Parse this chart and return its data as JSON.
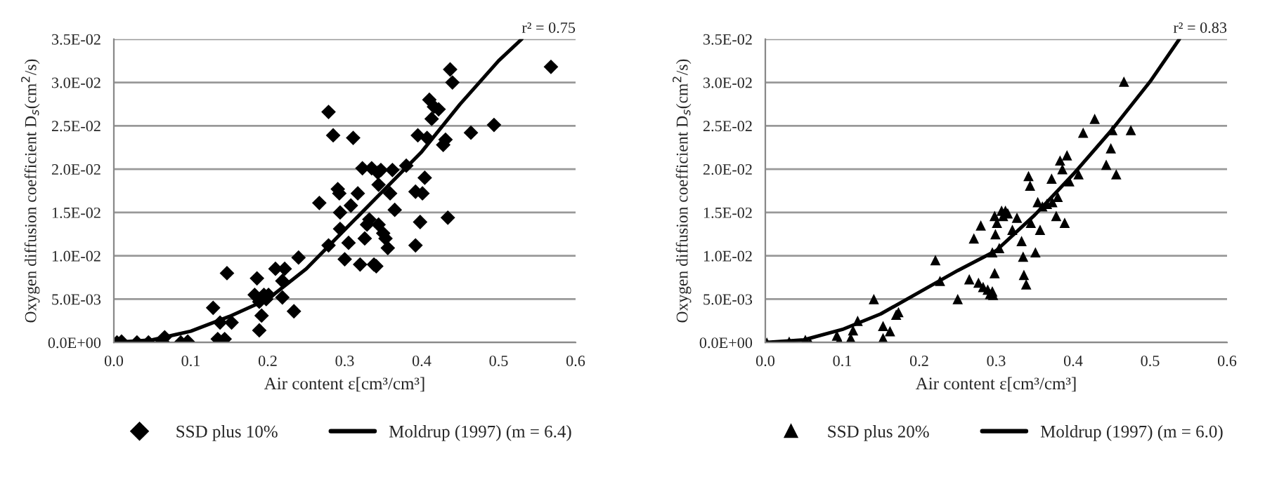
{
  "chart_data": [
    {
      "type": "scatter",
      "xlabel": "Air content ε[cm³/cm³]",
      "ylabel": "Oxygen diffusion coefficient D$_{s}$(cm$^{2}$/s)",
      "annotations": [
        "r² = 0.75"
      ],
      "xlim": [
        0,
        0.6
      ],
      "xticks": [
        {
          "value": 0,
          "label": "0.0"
        },
        {
          "value": 0.1,
          "label": "0.1"
        },
        {
          "value": 0.2,
          "label": "0.2"
        },
        {
          "value": 0.3,
          "label": "0.3"
        },
        {
          "value": 0.4,
          "label": "0.4"
        },
        {
          "value": 0.5,
          "label": "0.5"
        },
        {
          "value": 0.6,
          "label": "0.6"
        }
      ],
      "ylim": [
        0,
        0.035
      ],
      "yticks": [
        {
          "value": 0,
          "label": "0.0E+00"
        },
        {
          "value": 0.005,
          "label": "5.0E-03"
        },
        {
          "value": 0.01,
          "label": "1.0E-02"
        },
        {
          "value": 0.015,
          "label": "1.5E-02"
        },
        {
          "value": 0.02,
          "label": "2.0E-02"
        },
        {
          "value": 0.025,
          "label": "2.5E-02"
        },
        {
          "value": 0.03,
          "label": "3.0E-02"
        },
        {
          "value": 0.035,
          "label": "3.5E-02"
        }
      ],
      "grid": "y",
      "legend": "bottom",
      "series": [
        {
          "name": "SSD plus 10%",
          "marker": "diamond",
          "color": "#000000",
          "x": [
            0.004,
            0.01,
            0.03,
            0.045,
            0.063,
            0.066,
            0.087,
            0.096,
            0.129,
            0.138,
            0.135,
            0.144,
            0.147,
            0.153,
            0.183,
            0.186,
            0.189,
            0.192,
            0.189,
            0.195,
            0.198,
            0.201,
            0.21,
            0.219,
            0.222,
            0.219,
            0.234,
            0.24,
            0.267,
            0.279,
            0.279,
            0.285,
            0.291,
            0.293,
            0.294,
            0.294,
            0.3,
            0.305,
            0.308,
            0.311,
            0.317,
            0.32,
            0.323,
            0.326,
            0.329,
            0.332,
            0.335,
            0.338,
            0.341,
            0.343,
            0.344,
            0.344,
            0.347,
            0.35,
            0.353,
            0.356,
            0.359,
            0.362,
            0.365,
            0.38,
            0.392,
            0.392,
            0.395,
            0.398,
            0.401,
            0.404,
            0.407,
            0.41,
            0.413,
            0.416,
            0.422,
            0.428,
            0.431,
            0.434,
            0.437,
            0.44,
            0.464,
            0.494,
            0.568
          ],
          "values": [
            0,
            0.0001,
            0,
            0,
            0.0001,
            0.0006,
            0,
            0.0001,
            0.004,
            0.0023,
            0.0004,
            0.0004,
            0.008,
            0.0023,
            0.0055,
            0.0074,
            0.0047,
            0.0031,
            0.0014,
            0.0055,
            0.005,
            0.0055,
            0.0085,
            0.0071,
            0.0085,
            0.0052,
            0.0036,
            0.0098,
            0.0161,
            0.0112,
            0.0266,
            0.0239,
            0.0177,
            0.0172,
            0.015,
            0.0131,
            0.0096,
            0.0115,
            0.0158,
            0.0236,
            0.0172,
            0.009,
            0.0201,
            0.012,
            0.0136,
            0.0142,
            0.0201,
            0.009,
            0.0088,
            0.0196,
            0.0182,
            0.0136,
            0.0199,
            0.0126,
            0.012,
            0.0109,
            0.0172,
            0.0199,
            0.0153,
            0.0204,
            0.0112,
            0.0174,
            0.0239,
            0.0139,
            0.0172,
            0.019,
            0.0236,
            0.028,
            0.0258,
            0.0272,
            0.0269,
            0.0228,
            0.0234,
            0.0144,
            0.0315,
            0.03,
            0.0242,
            0.0251,
            0.0318
          ]
        },
        {
          "name": "Moldrup (1997) (m = 6.4)",
          "type": "line",
          "marker": "none",
          "line_style": "solid",
          "color": "#000000",
          "x": [
            0,
            0.05,
            0.1,
            0.15,
            0.2,
            0.25,
            0.3,
            0.35,
            0.4,
            0.45,
            0.5,
            0.53
          ],
          "values": [
            0,
            0.0003,
            0.0013,
            0.003,
            0.005,
            0.0085,
            0.013,
            0.0175,
            0.022,
            0.0275,
            0.0325,
            0.035
          ]
        }
      ]
    },
    {
      "type": "scatter",
      "xlabel": "Air content ε[cm³/cm³]",
      "ylabel": "Oxygen diffusion coefficient D$_{s}$(cm$^{2}$/s)",
      "annotations": [
        "r² = 0.83"
      ],
      "xlim": [
        0,
        0.6
      ],
      "xticks": [
        {
          "value": 0,
          "label": "0.0"
        },
        {
          "value": 0.1,
          "label": "0.1"
        },
        {
          "value": 0.2,
          "label": "0.2"
        },
        {
          "value": 0.3,
          "label": "0.3"
        },
        {
          "value": 0.4,
          "label": "0.4"
        },
        {
          "value": 0.5,
          "label": "0.5"
        },
        {
          "value": 0.6,
          "label": "0.6"
        }
      ],
      "ylim": [
        0,
        0.035
      ],
      "yticks": [
        {
          "value": 0,
          "label": "0.0E+00"
        },
        {
          "value": 0.005,
          "label": "5.0E-03"
        },
        {
          "value": 0.01,
          "label": "1.0E-02"
        },
        {
          "value": 0.015,
          "label": "1.5E-02"
        },
        {
          "value": 0.02,
          "label": "2.0E-02"
        },
        {
          "value": 0.025,
          "label": "2.5E-02"
        },
        {
          "value": 0.03,
          "label": "3.0E-02"
        },
        {
          "value": 0.035,
          "label": "3.5E-02"
        }
      ],
      "grid": "y",
      "legend": "bottom",
      "series": [
        {
          "name": "SSD plus 20%",
          "marker": "triangle",
          "color": "#000000",
          "x": [
            0.002,
            0.031,
            0.052,
            0.058,
            0.093,
            0.096,
            0.111,
            0.114,
            0.12,
            0.141,
            0.153,
            0.153,
            0.162,
            0.17,
            0.173,
            0.221,
            0.227,
            0.25,
            0.265,
            0.271,
            0.277,
            0.28,
            0.283,
            0.289,
            0.292,
            0.295,
            0.295,
            0.296,
            0.298,
            0.298,
            0.299,
            0.301,
            0.304,
            0.307,
            0.309,
            0.312,
            0.315,
            0.321,
            0.327,
            0.333,
            0.335,
            0.336,
            0.339,
            0.342,
            0.344,
            0.345,
            0.351,
            0.354,
            0.357,
            0.36,
            0.366,
            0.372,
            0.373,
            0.378,
            0.38,
            0.383,
            0.386,
            0.389,
            0.392,
            0.395,
            0.407,
            0.413,
            0.428,
            0.443,
            0.449,
            0.451,
            0.456,
            0.466,
            0.475
          ],
          "values": [
            0,
            0.0001,
            0.0003,
            0,
            0.0008,
            0.0002,
            0.0005,
            0.0014,
            0.0025,
            0.005,
            0.0019,
            0.0005,
            0.0013,
            0.0032,
            0.0035,
            0.0095,
            0.0071,
            0.005,
            0.0073,
            0.012,
            0.0069,
            0.0135,
            0.0064,
            0.0061,
            0.0056,
            0.0059,
            0.0104,
            0.0055,
            0.008,
            0.0146,
            0.0125,
            0.0138,
            0.0109,
            0.0152,
            0.0146,
            0.0152,
            0.0149,
            0.013,
            0.0144,
            0.0117,
            0.0099,
            0.0078,
            0.0067,
            0.0192,
            0.0181,
            0.0138,
            0.0104,
            0.0162,
            0.013,
            0.0157,
            0.016,
            0.0189,
            0.0162,
            0.0146,
            0.0168,
            0.021,
            0.02,
            0.0138,
            0.0216,
            0.0186,
            0.0194,
            0.0242,
            0.0258,
            0.0205,
            0.0224,
            0.0245,
            0.0194,
            0.0301,
            0.0245
          ]
        },
        {
          "name": "Moldrup (1997) (m = 6.0)",
          "type": "line",
          "marker": "none",
          "line_style": "solid",
          "color": "#000000",
          "x": [
            0,
            0.05,
            0.1,
            0.15,
            0.2,
            0.25,
            0.3,
            0.35,
            0.4,
            0.45,
            0.5,
            0.538
          ],
          "values": [
            0,
            0.0003,
            0.0015,
            0.0033,
            0.0058,
            0.0083,
            0.0106,
            0.0147,
            0.0194,
            0.0245,
            0.0301,
            0.035
          ]
        }
      ]
    }
  ]
}
